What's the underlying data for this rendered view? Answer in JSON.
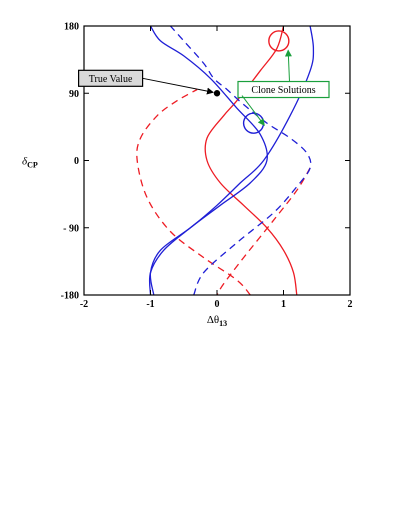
{
  "chart_data": {
    "type": "line",
    "xlabel": "Δθ",
    "xlabel_sub": "13",
    "ylabel": "δ",
    "ylabel_sub": "CP",
    "xlim": [
      -2,
      2
    ],
    "ylim": [
      -180,
      180
    ],
    "xticks": [
      -2,
      -1,
      0,
      1,
      2
    ],
    "yticks": [
      -180,
      -90,
      0,
      90,
      180
    ],
    "xtick_labels": [
      "-2",
      "-1",
      "0",
      "1",
      "2"
    ],
    "ytick_labels": [
      "-180",
      "- 90",
      "0",
      "90",
      "180"
    ],
    "grid": false,
    "series": [
      {
        "color": "#ee1c24",
        "style": "solid",
        "points": [
          [
            1.2,
            -180
          ],
          [
            1.15,
            -150
          ],
          [
            1.0,
            -120
          ],
          [
            0.75,
            -90
          ],
          [
            0.4,
            -60
          ],
          [
            0.05,
            -30
          ],
          [
            -0.15,
            0
          ],
          [
            -0.15,
            30
          ],
          [
            0.1,
            60
          ],
          [
            0.3,
            80
          ],
          [
            0.65,
            120
          ],
          [
            0.9,
            150
          ],
          [
            1.0,
            180
          ]
        ]
      },
      {
        "color": "#ee1c24",
        "style": "dashed",
        "points": [
          [
            0.5,
            -180
          ],
          [
            0.3,
            -160
          ],
          [
            -0.2,
            -130
          ],
          [
            -0.7,
            -95
          ],
          [
            -1.05,
            -50
          ],
          [
            -1.2,
            0
          ],
          [
            -1.15,
            30
          ],
          [
            -0.9,
            60
          ],
          [
            -0.6,
            80
          ],
          [
            -0.3,
            95
          ]
        ]
      },
      {
        "color": "#ee1c24",
        "style": "dashed",
        "points": [
          [
            1.4,
            -10
          ],
          [
            1.2,
            -40
          ],
          [
            0.85,
            -80
          ],
          [
            0.4,
            -130
          ],
          [
            0.1,
            -165
          ],
          [
            0.0,
            -180
          ]
        ]
      },
      {
        "color": "#1f1fd6",
        "style": "solid",
        "points": [
          [
            -0.95,
            -180
          ],
          [
            -1.0,
            -150
          ],
          [
            -0.85,
            -120
          ],
          [
            -0.4,
            -90
          ],
          [
            0.0,
            -60
          ],
          [
            0.35,
            -30
          ],
          [
            0.7,
            0
          ],
          [
            1.1,
            60
          ],
          [
            1.4,
            120
          ],
          [
            1.45,
            150
          ],
          [
            1.4,
            180
          ]
        ]
      },
      {
        "color": "#1f1fd6",
        "style": "solid",
        "points": [
          [
            -1.0,
            180
          ],
          [
            -0.85,
            160
          ],
          [
            -0.5,
            140
          ],
          [
            -0.1,
            110
          ],
          [
            0.3,
            70
          ],
          [
            0.65,
            35
          ],
          [
            0.75,
            0
          ],
          [
            0.5,
            -30
          ],
          [
            0.05,
            -60
          ],
          [
            -0.4,
            -90
          ],
          [
            -0.8,
            -120
          ],
          [
            -1.0,
            -150
          ],
          [
            -1.0,
            -180
          ]
        ]
      },
      {
        "color": "#1f1fd6",
        "style": "dashed",
        "points": [
          [
            -0.35,
            -180
          ],
          [
            -0.2,
            -150
          ],
          [
            0.3,
            -110
          ],
          [
            0.85,
            -70
          ],
          [
            1.2,
            -35
          ],
          [
            1.4,
            -10
          ],
          [
            1.35,
            10
          ],
          [
            1.1,
            30
          ],
          [
            0.75,
            50
          ],
          [
            0.4,
            75
          ],
          [
            0.15,
            95
          ],
          [
            -0.05,
            110
          ],
          [
            -0.2,
            130
          ],
          [
            -0.5,
            160
          ],
          [
            -0.7,
            180
          ]
        ]
      }
    ],
    "markers": [
      {
        "label": "True Value",
        "x": 0,
        "y": 90,
        "kind": "point"
      }
    ],
    "circles": [
      {
        "x": 0.93,
        "y": 160,
        "color": "#ee1c24"
      },
      {
        "x": 0.55,
        "y": 50,
        "color": "#1f1fd6"
      }
    ],
    "annotations": [
      {
        "label": "True Value",
        "box_x": -1.6,
        "box_y": 110,
        "target_x": 0,
        "target_y": 90,
        "border": "#000000",
        "fill": "#d9d9d9"
      },
      {
        "label": "Clone Solutions",
        "box_x": 1.0,
        "box_y": 95,
        "targets": [
          [
            0.98,
            150
          ],
          [
            0.62,
            50
          ]
        ],
        "border": "#1a9f3c",
        "fill": "#ffffff"
      }
    ]
  }
}
